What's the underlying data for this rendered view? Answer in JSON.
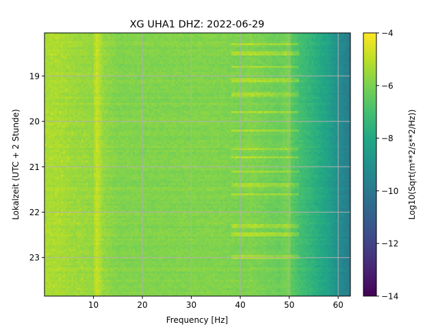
{
  "chart_data": {
    "type": "heatmap",
    "title": "XG UHA1  DHZ: 2022-06-29",
    "xlabel": "Frequency [Hz]",
    "ylabel": "Lokalzeit (UTC + 2 Stunde)",
    "colorbar_label": "Log10(Sqrt(m**2/s**2/Hz))",
    "xlim": [
      0,
      62.5
    ],
    "ylim": [
      18.05,
      23.85
    ],
    "y_inverted": true,
    "xticks": [
      10,
      20,
      30,
      40,
      50,
      60
    ],
    "xtick_labels": [
      "10",
      "20",
      "30",
      "40",
      "50",
      "60"
    ],
    "yticks": [
      19,
      20,
      21,
      22,
      23
    ],
    "ytick_labels": [
      "19",
      "20",
      "21",
      "22",
      "23"
    ],
    "clim": [
      -14,
      -4
    ],
    "colorbar_ticks": [
      -4,
      -6,
      -8,
      -10,
      -12,
      -14
    ],
    "colorbar_tick_labels": [
      "−4",
      "−6",
      "−8",
      "−10",
      "−12",
      "−14"
    ],
    "colormap": "viridis",
    "grid": true,
    "spectrum_profile": {
      "frequency_hz": [
        0,
        3,
        6,
        10,
        10.5,
        11,
        12,
        15,
        20,
        25,
        30,
        35,
        40,
        42,
        45,
        48,
        50,
        50.5,
        52,
        55,
        58,
        60,
        62.5
      ],
      "log10_amplitude": [
        -5.3,
        -5.3,
        -5.5,
        -5.6,
        -4.8,
        -5.0,
        -5.6,
        -5.9,
        -5.9,
        -5.9,
        -5.9,
        -5.9,
        -6.0,
        -5.9,
        -6.1,
        -6.3,
        -6.0,
        -6.6,
        -7.0,
        -7.6,
        -8.3,
        -9.1,
        -9.9
      ]
    },
    "bright_bands_hours": [
      18.3,
      18.5,
      18.8,
      19.1,
      19.4,
      19.8,
      20.2,
      20.6,
      20.8,
      21.1,
      21.4,
      21.6,
      22.3,
      22.5,
      23.0
    ]
  }
}
